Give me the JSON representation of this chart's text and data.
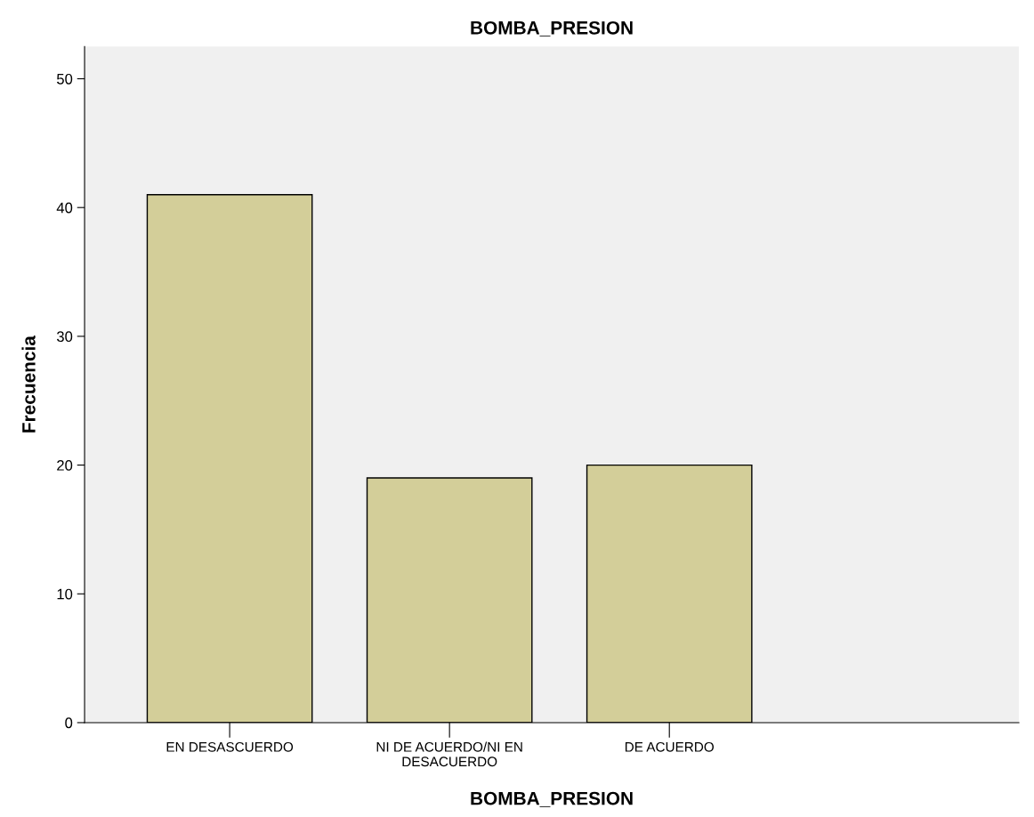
{
  "chart_data": {
    "type": "bar",
    "title": "BOMBA_PRESION",
    "xlabel": "BOMBA_PRESION",
    "ylabel": "Frecuencia",
    "categories": [
      "EN DESASCUERDO",
      "NI DE ACUERDO/NI EN\nDESACUERDO",
      "DE ACUERDO"
    ],
    "values": [
      41,
      19,
      20
    ],
    "color": "#d3ce99",
    "ylim": [
      0,
      52.5
    ],
    "yticks": [
      0,
      10,
      20,
      30,
      40,
      50
    ],
    "grid": false,
    "legend": false
  }
}
